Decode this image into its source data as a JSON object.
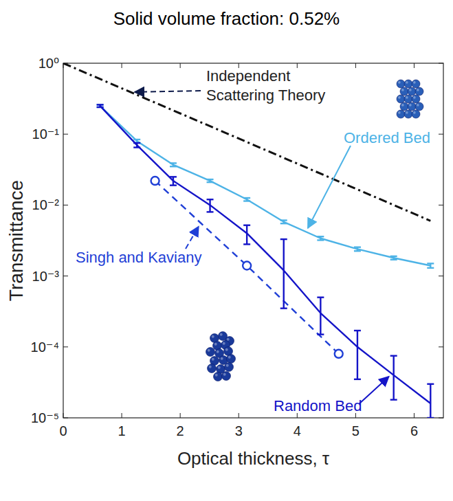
{
  "chart_data": {
    "type": "line",
    "title": "Solid volume fraction: 0.52%",
    "x_label": "Optical thickness, τ",
    "y_label": "Transmittance",
    "log": "y",
    "xlim": [
      0,
      6.5
    ],
    "xticks": [
      0,
      1,
      2,
      3,
      4,
      5,
      6
    ],
    "ylim": [
      1e-05,
      1
    ],
    "yticks": [
      {
        "value": 1,
        "label": "10⁰"
      },
      {
        "value": 0.1,
        "label": "10⁻¹"
      },
      {
        "value": 0.01,
        "label": "10⁻²"
      },
      {
        "value": 0.001,
        "label": "10⁻³"
      },
      {
        "value": 0.0001,
        "label": "10⁻⁴"
      },
      {
        "value": 1e-05,
        "label": "10⁻⁵"
      }
    ],
    "series": [
      {
        "name": "Independent Scattering Theory",
        "color": "#111111",
        "line_style": "dashdot",
        "marker": "none",
        "x": [
          0,
          6.28
        ],
        "values": [
          1,
          0.006
        ]
      },
      {
        "name": "Ordered Bed",
        "color": "#4db3e6",
        "line_style": "solid",
        "marker": "none",
        "x": [
          0.63,
          1.26,
          1.88,
          2.51,
          3.14,
          3.77,
          4.4,
          5.03,
          5.65,
          6.28
        ],
        "values": [
          0.25,
          0.08,
          0.037,
          0.022,
          0.012,
          0.0058,
          0.0034,
          0.0024,
          0.0018,
          0.0014
        ],
        "lower": [
          0.24,
          0.076,
          0.035,
          0.021,
          0.0114,
          0.0055,
          0.0032,
          0.00225,
          0.0017,
          0.0013
        ],
        "upper": [
          0.26,
          0.084,
          0.039,
          0.023,
          0.0126,
          0.0061,
          0.0036,
          0.00255,
          0.0019,
          0.0015
        ]
      },
      {
        "name": "Singh and Kaviany",
        "color": "#1f3fd6",
        "line_style": "dashed",
        "marker": "circle",
        "x": [
          1.57,
          3.14,
          4.71
        ],
        "values": [
          0.022,
          0.0014,
          8e-05
        ]
      },
      {
        "name": "Random Bed",
        "color": "#1414c8",
        "line_style": "solid",
        "marker": "none",
        "x": [
          0.63,
          1.26,
          1.88,
          2.51,
          3.14,
          3.77,
          4.4,
          5.03,
          5.65,
          6.28
        ],
        "values": [
          0.25,
          0.07,
          0.022,
          0.01,
          0.004,
          0.0012,
          0.0003,
          0.0001,
          4e-05,
          1.6e-05
        ],
        "lower": [
          0.24,
          0.065,
          0.019,
          0.008,
          0.0028,
          0.00035,
          0.00015,
          3.5e-05,
          1.8e-05,
          1e-05
        ],
        "upper": [
          0.26,
          0.075,
          0.025,
          0.012,
          0.0052,
          0.0033,
          0.0005,
          0.00017,
          7.5e-05,
          3e-05
        ]
      }
    ]
  }
}
